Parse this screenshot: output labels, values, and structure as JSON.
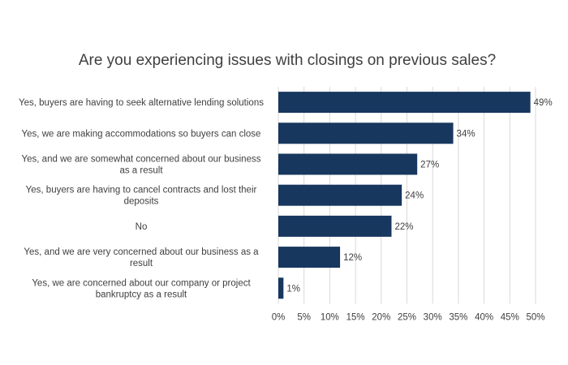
{
  "chart_data": {
    "type": "bar",
    "orientation": "horizontal",
    "title": "Are you experiencing issues with closings on previous sales?",
    "categories": [
      [
        "Yes, buyers are having to seek alternative lending solutions"
      ],
      [
        "Yes, we are making accommodations so buyers can close"
      ],
      [
        "Yes, and we are somewhat concerned about our business",
        "as a result"
      ],
      [
        "Yes, buyers are having to cancel contracts and lost their",
        "deposits"
      ],
      [
        "No"
      ],
      [
        "Yes, and we are very concerned about our business as a",
        "result"
      ],
      [
        "Yes, we are concerned about our company or project",
        "bankruptcy as a result"
      ]
    ],
    "values": [
      49,
      34,
      27,
      24,
      22,
      12,
      1
    ],
    "data_labels": [
      "49%",
      "34%",
      "27%",
      "24%",
      "22%",
      "12%",
      "1%"
    ],
    "xlim": [
      0,
      50
    ],
    "xticks": [
      0,
      5,
      10,
      15,
      20,
      25,
      30,
      35,
      40,
      45,
      50
    ],
    "xtick_labels": [
      "0%",
      "5%",
      "10%",
      "15%",
      "20%",
      "25%",
      "30%",
      "35%",
      "40%",
      "45%",
      "50%"
    ],
    "grid": true,
    "bar_color": "#17375e",
    "legend": "none"
  }
}
